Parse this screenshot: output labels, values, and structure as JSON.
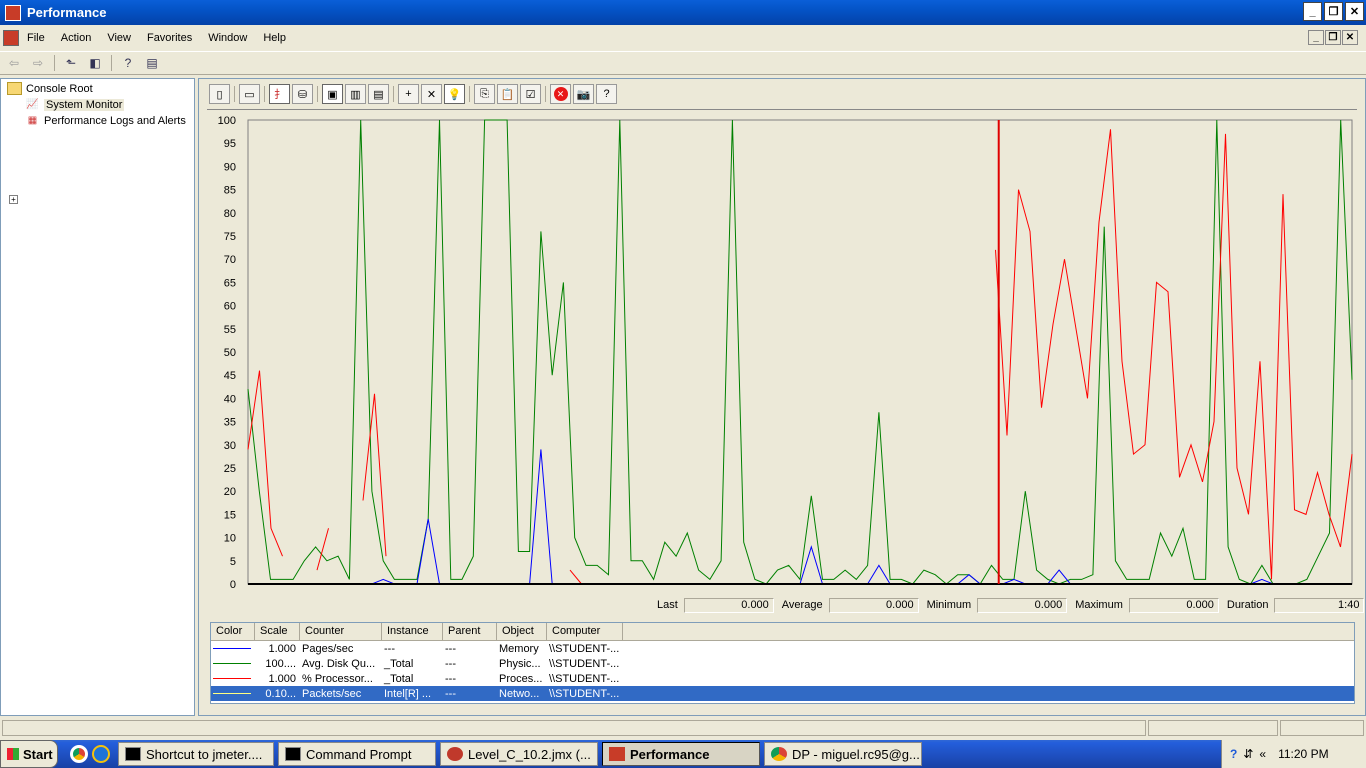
{
  "window": {
    "title": "Performance"
  },
  "menu": [
    "File",
    "Action",
    "View",
    "Favorites",
    "Window",
    "Help"
  ],
  "tree": {
    "root": "Console Root",
    "items": [
      "System Monitor",
      "Performance Logs and Alerts"
    ]
  },
  "stats": {
    "last_label": "Last",
    "last": "0.000",
    "avg_label": "Average",
    "avg": "0.000",
    "min_label": "Minimum",
    "min": "0.000",
    "max_label": "Maximum",
    "max": "0.000",
    "dur_label": "Duration",
    "dur": "1:40"
  },
  "legend": {
    "headers": [
      "Color",
      "Scale",
      "Counter",
      "Instance",
      "Parent",
      "Object",
      "Computer"
    ],
    "rows": [
      {
        "color": "#0000ff",
        "scale": "1.000",
        "counter": "Pages/sec",
        "instance": "---",
        "parent": "---",
        "object": "Memory",
        "computer": "\\\\STUDENT-..."
      },
      {
        "color": "#008000",
        "scale": "100....",
        "counter": "Avg. Disk Qu...",
        "instance": "_Total",
        "parent": "---",
        "object": "Physic...",
        "computer": "\\\\STUDENT-..."
      },
      {
        "color": "#ff0000",
        "scale": "1.000",
        "counter": "% Processor...",
        "instance": "_Total",
        "parent": "---",
        "object": "Proces...",
        "computer": "\\\\STUDENT-..."
      },
      {
        "color": "#ffff80",
        "scale": "0.10...",
        "counter": "Packets/sec",
        "instance": "Intel[R] ...",
        "parent": "---",
        "object": "Netwo...",
        "computer": "\\\\STUDENT-..."
      }
    ]
  },
  "taskbar": {
    "start": "Start",
    "tasks": [
      "Shortcut to jmeter....",
      "Command Prompt",
      "Level_C_10.2.jmx (...",
      "Performance",
      "DP - miguel.rc95@g..."
    ],
    "clock": "11:20 PM"
  },
  "chart_data": {
    "type": "line",
    "ylim": [
      0,
      100
    ],
    "yticks": [
      "100",
      "95",
      "90",
      "85",
      "80",
      "75",
      "70",
      "65",
      "60",
      "55",
      "50",
      "45",
      "40",
      "35",
      "30",
      "25",
      "20",
      "15",
      "10",
      "5",
      "0"
    ],
    "time_bar_fraction": 0.68,
    "series": [
      {
        "color": "#008000",
        "values": [
          42,
          20,
          1,
          1,
          1,
          5,
          8,
          5,
          6,
          1,
          100,
          20,
          5,
          1,
          1,
          1,
          14,
          100,
          1,
          1,
          6,
          100,
          100,
          100,
          7,
          7,
          76,
          45,
          65,
          10,
          4,
          4,
          2,
          100,
          5,
          5,
          1,
          9,
          6,
          11,
          3,
          1,
          5,
          100,
          9,
          1,
          0,
          3,
          4,
          1,
          19,
          1,
          1,
          3,
          1,
          4,
          37,
          1,
          1,
          0,
          3,
          2,
          0,
          2,
          2,
          0,
          4,
          1,
          1,
          20,
          3,
          1,
          0,
          1,
          1,
          2,
          77,
          5,
          1,
          1,
          1,
          11,
          6,
          12,
          1,
          1,
          100,
          8,
          1,
          0,
          4,
          0,
          0,
          0,
          1,
          6,
          11,
          100,
          44
        ]
      },
      {
        "color": "#ff0000",
        "values": [
          29,
          46,
          12,
          6,
          null,
          null,
          3,
          12,
          null,
          null,
          18,
          41,
          6,
          null,
          null,
          null,
          null,
          null,
          null,
          null,
          null,
          null,
          null,
          null,
          null,
          null,
          null,
          null,
          3,
          0,
          null,
          null,
          null,
          null,
          null,
          null,
          null,
          null,
          null,
          null,
          null,
          null,
          null,
          null,
          null,
          null,
          null,
          null,
          null,
          null,
          null,
          null,
          null,
          null,
          null,
          null,
          null,
          null,
          null,
          null,
          null,
          null,
          null,
          null,
          null,
          72,
          32,
          85,
          76,
          38,
          56,
          70,
          55,
          40,
          78,
          98,
          48,
          28,
          30,
          65,
          63,
          23,
          30,
          22,
          35,
          97,
          25,
          15,
          48,
          1,
          84,
          16,
          15,
          24,
          15,
          8,
          28
        ]
      },
      {
        "color": "#0000ff",
        "values": [
          0,
          0,
          0,
          0,
          0,
          0,
          0,
          0,
          0,
          0,
          0,
          0,
          1,
          0,
          0,
          0,
          14,
          0,
          0,
          0,
          0,
          0,
          0,
          0,
          0,
          0,
          29,
          0,
          0,
          0,
          0,
          0,
          0,
          0,
          0,
          0,
          0,
          0,
          0,
          0,
          0,
          0,
          0,
          0,
          0,
          0,
          0,
          0,
          0,
          0,
          8,
          0,
          0,
          0,
          0,
          0,
          4,
          0,
          0,
          0,
          0,
          0,
          0,
          0,
          2,
          0,
          0,
          0,
          1,
          0,
          0,
          0,
          3,
          0,
          0,
          0,
          0,
          0,
          0,
          0,
          0,
          0,
          0,
          0,
          0,
          0,
          0,
          0,
          0,
          0,
          1,
          0,
          0,
          0,
          0,
          0,
          0,
          0,
          0
        ]
      }
    ]
  }
}
